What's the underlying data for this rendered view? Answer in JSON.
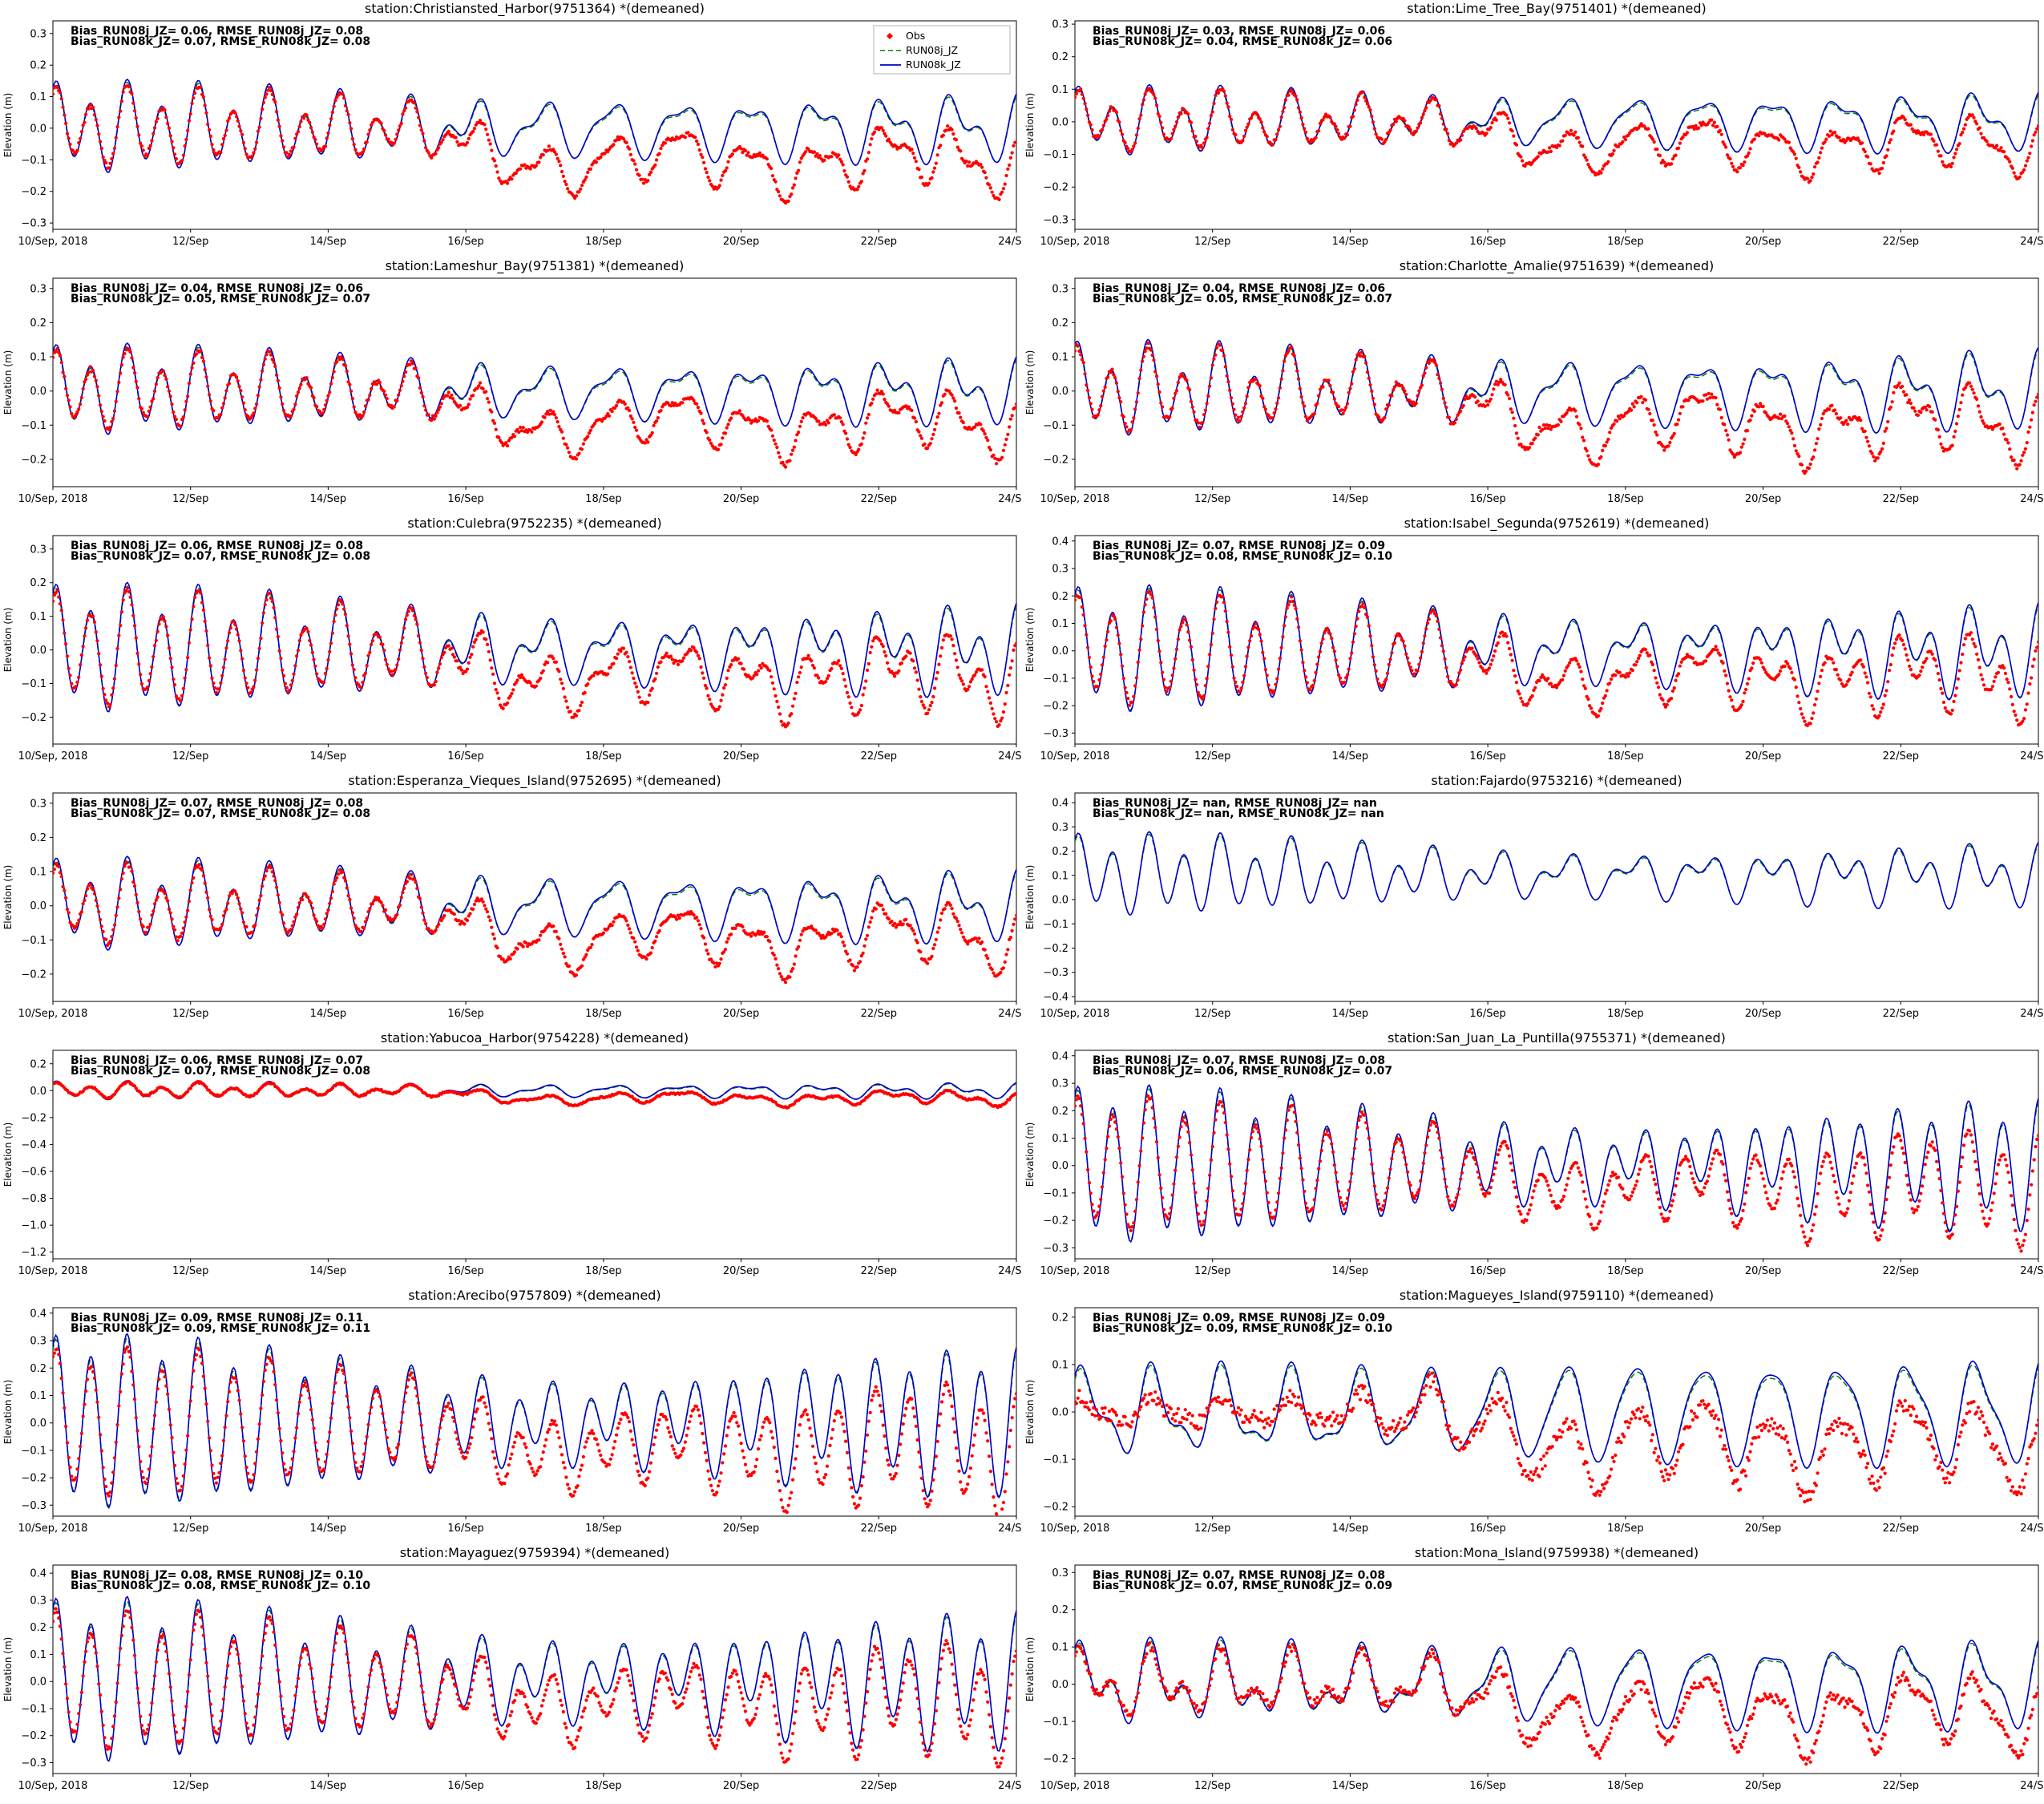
{
  "figure": {
    "background": "#ffffff",
    "rows": 7,
    "cols": 2
  },
  "colors": {
    "obs": "#ff0000",
    "run08j": "#008000",
    "run08k": "#0000cd",
    "axis": "#000000",
    "legend_border": "#b3b3b3"
  },
  "y_label": "Elevation (m)",
  "x_axis": {
    "tick_labels": [
      "10/Sep, 2018",
      "12/Sep",
      "14/Sep",
      "16/Sep",
      "18/Sep",
      "20/Sep",
      "22/Sep",
      "24/Sep"
    ],
    "range_days": [
      0,
      14
    ]
  },
  "legend": {
    "entries": [
      {
        "label": "Obs",
        "type": "marker",
        "color": "#ff0000"
      },
      {
        "label": "RUN08j_JZ",
        "type": "dashed",
        "color": "#008000"
      },
      {
        "label": "RUN08k_JZ",
        "type": "solid",
        "color": "#0000cd"
      }
    ]
  },
  "chart_data": {
    "type": "line",
    "description": "14 tide-gauge water level comparison panels: Obs (red dots), RUN08j_JZ (green dashed), RUN08k_JZ (blue solid), 10-24 Sep 2018, demeaned elevation in meters",
    "stations": [
      {
        "title": "station:Christiansted_Harbor(9751364) *(demeaned)",
        "name": "Christiansted_Harbor",
        "station_id": "9751364",
        "stats_line1": "Bias_RUN08j_JZ= 0.06, RMSE_RUN08j_JZ= 0.08",
        "stats_line2": "Bias_RUN08k_JZ= 0.07, RMSE_RUN08k_JZ= 0.08",
        "bias_run08j": 0.06,
        "rmse_run08j": 0.08,
        "bias_run08k": 0.07,
        "rmse_run08k": 0.08,
        "ylim": [
          -0.32,
          0.34
        ],
        "yticks": [
          0.3,
          0.2,
          0.1,
          0.0,
          -0.1,
          -0.2,
          -0.3
        ],
        "has_obs": true,
        "show_legend": true,
        "model": {
          "a_semi": 0.11,
          "a_di": 0.045,
          "fade": 0.55,
          "di_gain": 0.7,
          "ph": 1.1,
          "ph2": 0.6,
          "offset": 0,
          "obs_amp": 0.88,
          "drift": 0.13,
          "noise": 0.007
        }
      },
      {
        "title": "station:Lime_Tree_Bay(9751401) *(demeaned)",
        "name": "Lime_Tree_Bay",
        "station_id": "9751401",
        "stats_line1": "Bias_RUN08j_JZ= 0.03, RMSE_RUN08j_JZ= 0.06",
        "stats_line2": "Bias_RUN08k_JZ= 0.04, RMSE_RUN08k_JZ= 0.06",
        "bias_run08j": 0.03,
        "rmse_run08j": 0.06,
        "bias_run08k": 0.04,
        "rmse_run08k": 0.06,
        "ylim": [
          -0.33,
          0.31
        ],
        "yticks": [
          0.3,
          0.2,
          0.1,
          0.0,
          -0.1,
          -0.2,
          -0.3
        ],
        "has_obs": true,
        "show_legend": false,
        "model": {
          "a_semi": 0.075,
          "a_di": 0.04,
          "fade": 0.5,
          "di_gain": 0.7,
          "ph": 1.1,
          "ph2": 0.6,
          "offset": 0,
          "obs_amp": 0.9,
          "drift": 0.09,
          "noise": 0.008
        }
      },
      {
        "title": "station:Lameshur_Bay(9751381) *(demeaned)",
        "name": "Lameshur_Bay",
        "station_id": "9751381",
        "stats_line1": "Bias_RUN08j_JZ= 0.04, RMSE_RUN08j_JZ= 0.06",
        "stats_line2": "Bias_RUN08k_JZ= 0.05, RMSE_RUN08k_JZ= 0.07",
        "bias_run08j": 0.04,
        "rmse_run08j": 0.06,
        "bias_run08k": 0.05,
        "rmse_run08k": 0.07,
        "ylim": [
          -0.28,
          0.33
        ],
        "yticks": [
          0.3,
          0.2,
          0.1,
          0.0,
          -0.1,
          -0.2
        ],
        "has_obs": true,
        "show_legend": false,
        "model": {
          "a_semi": 0.1,
          "a_di": 0.04,
          "fade": 0.5,
          "di_gain": 0.6,
          "ph": 1.1,
          "ph2": 0.6,
          "offset": 0,
          "obs_amp": 0.88,
          "drift": 0.12,
          "noise": 0.007
        }
      },
      {
        "title": "station:Charlotte_Amalie(9751639) *(demeaned)",
        "name": "Charlotte_Amalie",
        "station_id": "9751639",
        "stats_line1": "Bias_RUN08j_JZ= 0.04, RMSE_RUN08j_JZ= 0.06",
        "stats_line2": "Bias_RUN08k_JZ= 0.05, RMSE_RUN08k_JZ= 0.07",
        "bias_run08j": 0.04,
        "rmse_run08j": 0.06,
        "bias_run08k": 0.05,
        "rmse_run08k": 0.07,
        "ylim": [
          -0.28,
          0.33
        ],
        "yticks": [
          0.3,
          0.2,
          0.1,
          0.0,
          -0.1,
          -0.2
        ],
        "has_obs": true,
        "show_legend": false,
        "model": {
          "a_semi": 0.1,
          "a_di": 0.05,
          "fade": 0.45,
          "di_gain": 0.6,
          "ph": 1.3,
          "ph2": 0.8,
          "offset": 0,
          "obs_amp": 0.9,
          "drift": 0.12,
          "noise": 0.009
        }
      },
      {
        "title": "station:Culebra(9752235) *(demeaned)",
        "name": "Culebra",
        "station_id": "9752235",
        "stats_line1": "Bias_RUN08j_JZ= 0.06, RMSE_RUN08j_JZ= 0.08",
        "stats_line2": "Bias_RUN08k_JZ= 0.07, RMSE_RUN08k_JZ= 0.08",
        "bias_run08j": 0.06,
        "rmse_run08j": 0.08,
        "bias_run08k": 0.07,
        "rmse_run08k": 0.08,
        "ylim": [
          -0.28,
          0.34
        ],
        "yticks": [
          0.3,
          0.2,
          0.1,
          0.0,
          -0.1,
          -0.2
        ],
        "has_obs": true,
        "show_legend": false,
        "model": {
          "a_semi": 0.15,
          "a_di": 0.05,
          "fade": 0.45,
          "di_gain": 0.4,
          "ph": 1.1,
          "ph2": 0.6,
          "offset": 0,
          "obs_amp": 0.9,
          "drift": 0.1,
          "noise": 0.007
        }
      },
      {
        "title": "station:Isabel_Segunda(9752619) *(demeaned)",
        "name": "Isabel_Segunda",
        "station_id": "9752619",
        "stats_line1": "Bias_RUN08j_JZ= 0.07, RMSE_RUN08j_JZ= 0.09",
        "stats_line2": "Bias_RUN08k_JZ= 0.08, RMSE_RUN08k_JZ= 0.10",
        "bias_run08j": 0.07,
        "rmse_run08j": 0.09,
        "bias_run08k": 0.08,
        "rmse_run08k": 0.1,
        "ylim": [
          -0.34,
          0.42
        ],
        "yticks": [
          0.4,
          0.3,
          0.2,
          0.1,
          0.0,
          -0.1,
          -0.2,
          -0.3
        ],
        "has_obs": true,
        "show_legend": false,
        "model": {
          "a_semi": 0.18,
          "a_di": 0.06,
          "fade": 0.4,
          "di_gain": 0.4,
          "ph": 1.1,
          "ph2": 0.6,
          "offset": 0,
          "obs_amp": 0.88,
          "drift": 0.12,
          "noise": 0.008
        }
      },
      {
        "title": "station:Esperanza_Vieques_Island(9752695) *(demeaned)",
        "name": "Esperanza_Vieques_Island",
        "station_id": "9752695",
        "stats_line1": "Bias_RUN08j_JZ= 0.07, RMSE_RUN08j_JZ= 0.08",
        "stats_line2": "Bias_RUN08k_JZ= 0.07, RMSE_RUN08k_JZ= 0.08",
        "bias_run08j": 0.07,
        "rmse_run08j": 0.08,
        "bias_run08k": 0.07,
        "rmse_run08k": 0.08,
        "ylim": [
          -0.28,
          0.33
        ],
        "yticks": [
          0.3,
          0.2,
          0.1,
          0.0,
          -0.1,
          -0.2
        ],
        "has_obs": true,
        "show_legend": false,
        "model": {
          "a_semi": 0.1,
          "a_di": 0.045,
          "fade": 0.5,
          "di_gain": 0.6,
          "ph": 1.1,
          "ph2": 0.6,
          "offset": 0,
          "obs_amp": 0.85,
          "drift": 0.12,
          "noise": 0.007
        }
      },
      {
        "title": "station:Fajardo(9753216) *(demeaned)",
        "name": "Fajardo",
        "station_id": "9753216",
        "stats_line1": "Bias_RUN08j_JZ= nan, RMSE_RUN08j_JZ= nan",
        "stats_line2": "Bias_RUN08k_JZ= nan, RMSE_RUN08k_JZ= nan",
        "bias_run08j": "nan",
        "rmse_run08j": "nan",
        "bias_run08k": "nan",
        "rmse_run08k": "nan",
        "ylim": [
          -0.42,
          0.44
        ],
        "yticks": [
          0.4,
          0.3,
          0.2,
          0.1,
          0.0,
          -0.1,
          -0.2,
          -0.3,
          -0.4
        ],
        "has_obs": false,
        "show_legend": false,
        "model": {
          "a_semi": 0.13,
          "a_di": 0.05,
          "fade": 0.35,
          "di_gain": 0.3,
          "ph": 1.1,
          "ph2": 0.6,
          "offset": 0.1,
          "obs_amp": 0.9,
          "drift": 0,
          "noise": 0
        }
      },
      {
        "title": "station:Yabucoa_Harbor(9754228) *(demeaned)",
        "name": "Yabucoa_Harbor",
        "station_id": "9754228",
        "stats_line1": "Bias_RUN08j_JZ= 0.06, RMSE_RUN08j_JZ= 0.07",
        "stats_line2": "Bias_RUN08k_JZ= 0.07, RMSE_RUN08k_JZ= 0.08",
        "bias_run08j": 0.06,
        "rmse_run08j": 0.07,
        "bias_run08k": 0.07,
        "rmse_run08k": 0.08,
        "ylim": [
          -1.25,
          0.3
        ],
        "yticks": [
          0.2,
          0.0,
          -0.2,
          -0.4,
          -0.6,
          -0.8,
          -1.0,
          -1.2
        ],
        "has_obs": true,
        "show_legend": false,
        "model": {
          "a_semi": 0.05,
          "a_di": 0.025,
          "fade": 0.4,
          "di_gain": 0.5,
          "ph": 1.1,
          "ph2": 0.6,
          "offset": 0,
          "obs_amp": 0.85,
          "drift": 0.07,
          "noise": 0.006
        }
      },
      {
        "title": "station:San_Juan_La_Puntilla(9755371) *(demeaned)",
        "name": "San_Juan_La_Puntilla",
        "station_id": "9755371",
        "stats_line1": "Bias_RUN08j_JZ= 0.07, RMSE_RUN08j_JZ= 0.08",
        "stats_line2": "Bias_RUN08k_JZ= 0.06, RMSE_RUN08k_JZ= 0.07",
        "bias_run08j": 0.07,
        "rmse_run08j": 0.08,
        "bias_run08k": 0.06,
        "rmse_run08k": 0.07,
        "ylim": [
          -0.34,
          0.42
        ],
        "yticks": [
          0.4,
          0.3,
          0.2,
          0.1,
          0.0,
          -0.1,
          -0.2,
          -0.3
        ],
        "has_obs": true,
        "show_legend": false,
        "model": {
          "a_semi": 0.24,
          "a_di": 0.05,
          "fade": 0.2,
          "di_gain": 0.2,
          "ph": 1.1,
          "ph2": 0.6,
          "offset": 0,
          "obs_amp": 0.85,
          "drift": 0.1,
          "noise": 0.008
        }
      },
      {
        "title": "station:Arecibo(9757809) *(demeaned)",
        "name": "Arecibo",
        "station_id": "9757809",
        "stats_line1": "Bias_RUN08j_JZ= 0.09, RMSE_RUN08j_JZ= 0.11",
        "stats_line2": "Bias_RUN08k_JZ= 0.09, RMSE_RUN08k_JZ= 0.11",
        "bias_run08j": 0.09,
        "rmse_run08j": 0.11,
        "bias_run08k": 0.09,
        "rmse_run08k": 0.11,
        "ylim": [
          -0.34,
          0.42
        ],
        "yticks": [
          0.4,
          0.3,
          0.2,
          0.1,
          0.0,
          -0.1,
          -0.2,
          -0.3
        ],
        "has_obs": true,
        "show_legend": false,
        "model": {
          "a_semi": 0.27,
          "a_di": 0.05,
          "fade": 0.18,
          "di_gain": 0.2,
          "ph": 1.1,
          "ph2": 0.6,
          "offset": 0,
          "obs_amp": 0.85,
          "drift": 0.12,
          "noise": 0.008
        }
      },
      {
        "title": "station:Magueyes_Island(9759110) *(demeaned)",
        "name": "Magueyes_Island",
        "station_id": "9759110",
        "stats_line1": "Bias_RUN08j_JZ= 0.09, RMSE_RUN08j_JZ= 0.09",
        "stats_line2": "Bias_RUN08k_JZ= 0.09, RMSE_RUN08k_JZ= 0.10",
        "bias_run08j": 0.09,
        "rmse_run08j": 0.09,
        "bias_run08k": 0.09,
        "rmse_run08k": 0.1,
        "ylim": [
          -0.22,
          0.22
        ],
        "yticks": [
          0.2,
          0.1,
          0.0,
          -0.1,
          -0.2
        ],
        "has_obs": true,
        "show_legend": false,
        "model": {
          "a_semi": 0.035,
          "a_di": 0.075,
          "fade": 0.2,
          "di_gain": 0.3,
          "ph": 1.1,
          "ph2": 0.6,
          "offset": 0,
          "obs_amp": 0.75,
          "drift": 0.09,
          "noise": 0.016,
          "early_damp": 0.6
        }
      },
      {
        "title": "station:Mayaguez(9759394) *(demeaned)",
        "name": "Mayaguez",
        "station_id": "9759394",
        "stats_line1": "Bias_RUN08j_JZ= 0.08, RMSE_RUN08j_JZ= 0.10",
        "stats_line2": "Bias_RUN08k_JZ= 0.08, RMSE_RUN08k_JZ= 0.10",
        "bias_run08j": 0.08,
        "rmse_run08j": 0.1,
        "bias_run08k": 0.08,
        "rmse_run08k": 0.1,
        "ylim": [
          -0.34,
          0.43
        ],
        "yticks": [
          0.4,
          0.3,
          0.2,
          0.1,
          0.0,
          -0.1,
          -0.2,
          -0.3
        ],
        "has_obs": true,
        "show_legend": false,
        "model": {
          "a_semi": 0.25,
          "a_di": 0.06,
          "fade": 0.2,
          "di_gain": 0.2,
          "ph": 1.1,
          "ph2": 0.6,
          "offset": 0,
          "obs_amp": 0.85,
          "drift": 0.1,
          "noise": 0.009
        }
      },
      {
        "title": "station:Mona_Island(9759938) *(demeaned)",
        "name": "Mona_Island",
        "station_id": "9759938",
        "stats_line1": "Bias_RUN08j_JZ= 0.07, RMSE_RUN08j_JZ= 0.08",
        "stats_line2": "Bias_RUN08k_JZ= 0.07, RMSE_RUN08k_JZ= 0.09",
        "bias_run08j": 0.07,
        "rmse_run08j": 0.08,
        "bias_run08k": 0.07,
        "rmse_run08k": 0.09,
        "ylim": [
          -0.24,
          0.32
        ],
        "yticks": [
          0.3,
          0.2,
          0.1,
          0.0,
          -0.1,
          -0.2
        ],
        "has_obs": true,
        "show_legend": false,
        "model": {
          "a_semi": 0.06,
          "a_di": 0.07,
          "fade": 0.3,
          "di_gain": 0.4,
          "ph": 1.1,
          "ph2": 0.6,
          "offset": 0,
          "obs_amp": 0.8,
          "drift": 0.1,
          "noise": 0.013
        }
      }
    ]
  }
}
